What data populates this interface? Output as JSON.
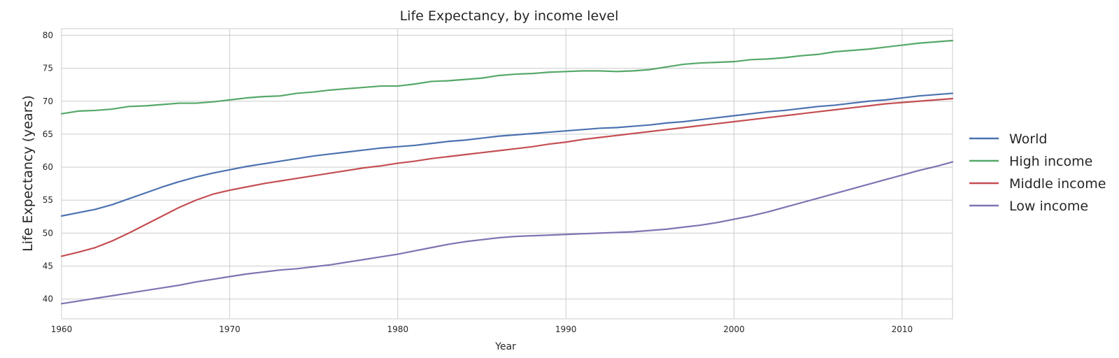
{
  "chart_data": {
    "type": "line",
    "title": "Life Expectancy, by income level",
    "xlabel": "Year",
    "ylabel": "Life Expectancy (years)",
    "xlim": [
      1960,
      2013
    ],
    "ylim": [
      37,
      81
    ],
    "xticks": [
      1960,
      1970,
      1980,
      1990,
      2000,
      2010
    ],
    "yticks": [
      40,
      45,
      50,
      55,
      60,
      65,
      70,
      75,
      80
    ],
    "grid": true,
    "legend_position": "right",
    "x": [
      1960,
      1961,
      1962,
      1963,
      1964,
      1965,
      1966,
      1967,
      1968,
      1969,
      1970,
      1971,
      1972,
      1973,
      1974,
      1975,
      1976,
      1977,
      1978,
      1979,
      1980,
      1981,
      1982,
      1983,
      1984,
      1985,
      1986,
      1987,
      1988,
      1989,
      1990,
      1991,
      1992,
      1993,
      1994,
      1995,
      1996,
      1997,
      1998,
      1999,
      2000,
      2001,
      2002,
      2003,
      2004,
      2005,
      2006,
      2007,
      2008,
      2009,
      2010,
      2011,
      2012,
      2013
    ],
    "series": [
      {
        "name": "World",
        "color": "#4c72b0",
        "values": [
          52.6,
          53.1,
          53.6,
          54.3,
          55.2,
          56.1,
          57.0,
          57.8,
          58.5,
          59.1,
          59.6,
          60.1,
          60.5,
          60.9,
          61.3,
          61.7,
          62.0,
          62.3,
          62.6,
          62.9,
          63.1,
          63.3,
          63.6,
          63.9,
          64.1,
          64.4,
          64.7,
          64.9,
          65.1,
          65.3,
          65.5,
          65.7,
          65.9,
          66.0,
          66.2,
          66.4,
          66.7,
          66.9,
          67.2,
          67.5,
          67.8,
          68.1,
          68.4,
          68.6,
          68.9,
          69.2,
          69.4,
          69.7,
          70.0,
          70.2,
          70.5,
          70.8,
          71.0,
          71.2
        ]
      },
      {
        "name": "High income",
        "color": "#55a868",
        "values": [
          68.1,
          68.5,
          68.6,
          68.8,
          69.2,
          69.3,
          69.5,
          69.7,
          69.7,
          69.9,
          70.2,
          70.5,
          70.7,
          70.8,
          71.2,
          71.4,
          71.7,
          71.9,
          72.1,
          72.3,
          72.3,
          72.6,
          73.0,
          73.1,
          73.3,
          73.5,
          73.9,
          74.1,
          74.2,
          74.4,
          74.5,
          74.6,
          74.6,
          74.5,
          74.6,
          74.8,
          75.2,
          75.6,
          75.8,
          75.9,
          76.0,
          76.3,
          76.4,
          76.6,
          76.9,
          77.1,
          77.5,
          77.7,
          77.9,
          78.2,
          78.5,
          78.8,
          79.0,
          79.2
        ]
      },
      {
        "name": "Middle income",
        "color": "#c44e52",
        "values": [
          46.5,
          47.1,
          47.8,
          48.8,
          50.0,
          51.3,
          52.6,
          53.9,
          55.0,
          55.9,
          56.5,
          57.0,
          57.5,
          57.9,
          58.3,
          58.7,
          59.1,
          59.5,
          59.9,
          60.2,
          60.6,
          60.9,
          61.3,
          61.6,
          61.9,
          62.2,
          62.5,
          62.8,
          63.1,
          63.5,
          63.8,
          64.2,
          64.5,
          64.8,
          65.1,
          65.4,
          65.7,
          66.0,
          66.3,
          66.6,
          66.9,
          67.2,
          67.5,
          67.8,
          68.1,
          68.4,
          68.7,
          69.0,
          69.3,
          69.6,
          69.8,
          70.0,
          70.2,
          70.4
        ]
      },
      {
        "name": "Low income",
        "color": "#8172b2",
        "values": [
          39.3,
          39.7,
          40.1,
          40.5,
          40.9,
          41.3,
          41.7,
          42.1,
          42.6,
          43.0,
          43.4,
          43.8,
          44.1,
          44.4,
          44.6,
          44.9,
          45.2,
          45.6,
          46.0,
          46.4,
          46.8,
          47.3,
          47.8,
          48.3,
          48.7,
          49.0,
          49.3,
          49.5,
          49.6,
          49.7,
          49.8,
          49.9,
          50.0,
          50.1,
          50.2,
          50.4,
          50.6,
          50.9,
          51.2,
          51.6,
          52.1,
          52.6,
          53.2,
          53.9,
          54.6,
          55.3,
          56.0,
          56.7,
          57.4,
          58.1,
          58.8,
          59.5,
          60.1,
          60.8
        ]
      }
    ]
  }
}
